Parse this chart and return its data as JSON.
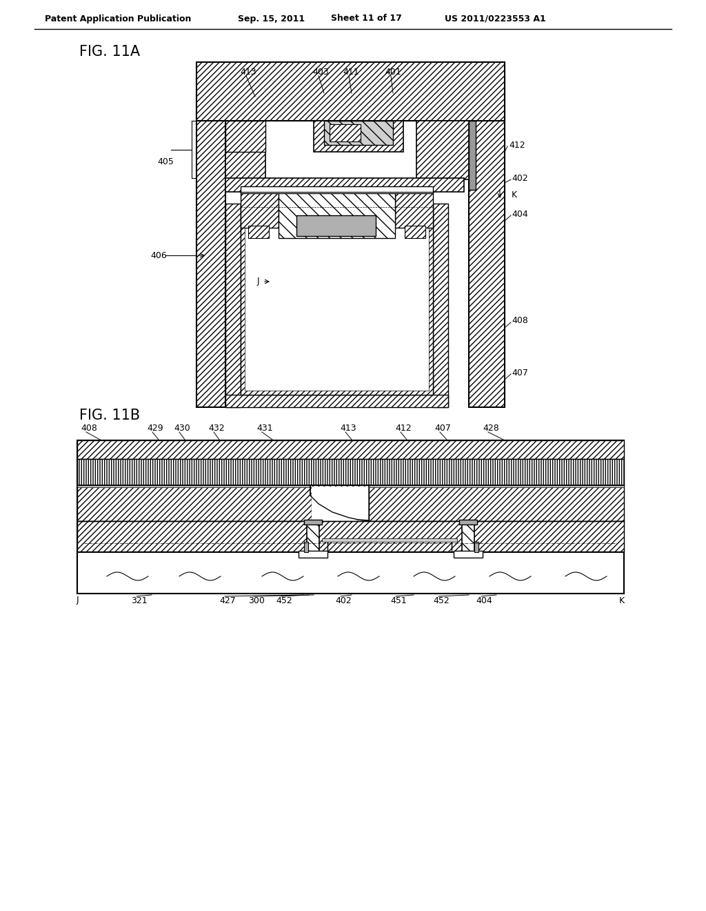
{
  "bg_color": "#ffffff",
  "header_text": "Patent Application Publication",
  "header_date": "Sep. 15, 2011",
  "header_sheet": "Sheet 11 of 17",
  "header_patent": "US 2011/0223553 A1",
  "fig11a_label": "FIG. 11A",
  "fig11b_label": "FIG. 11B"
}
